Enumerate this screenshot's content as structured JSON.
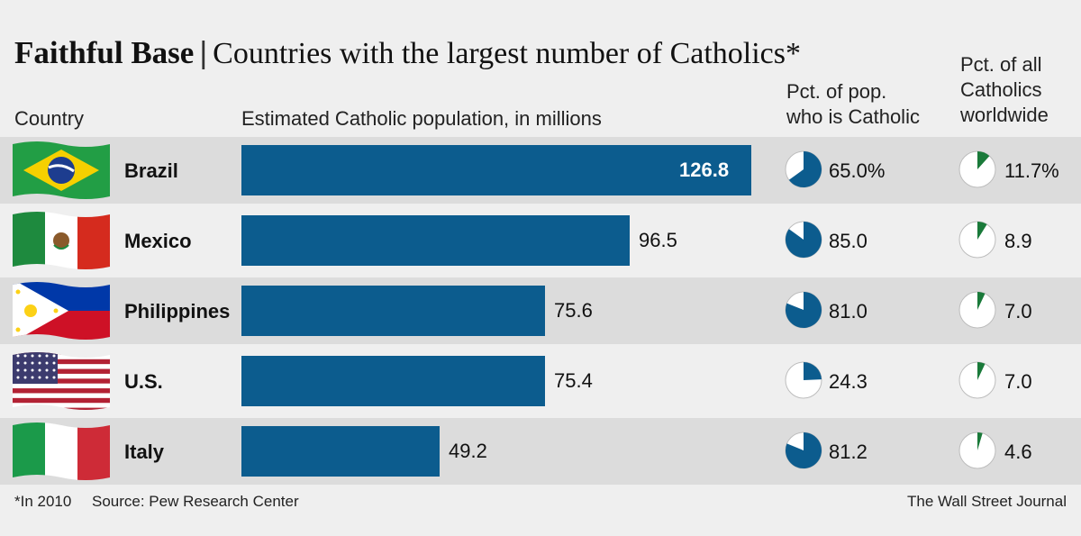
{
  "header": {
    "title_bold": "Faithful Base",
    "separator": "|",
    "title_sub": "Countries with the largest number of Catholics*"
  },
  "columns": {
    "country": "Country",
    "population": "Estimated Catholic population, in millions",
    "pct_pop_line1": "Pct. of pop.",
    "pct_pop_line2": "who is Catholic",
    "pct_world_line1": "Pct. of all",
    "pct_world_line2": "Catholics",
    "pct_world_line3": "worldwide"
  },
  "footer": {
    "note": "*In 2010",
    "source": "Source: Pew Research Center",
    "credit": "The Wall Street Journal"
  },
  "colors": {
    "bar": "#0c5c8e",
    "pie_fill": "#0c5c8e",
    "pie_world_fill": "#1a7a3a",
    "band": "#dcdcdc"
  },
  "chart_data": {
    "type": "bar",
    "title": "Countries with the largest number of Catholics*",
    "ylabel": "Estimated Catholic population, in millions",
    "categories": [
      "Brazil",
      "Mexico",
      "Philippines",
      "U.S.",
      "Italy"
    ],
    "values": [
      126.8,
      96.5,
      75.6,
      75.4,
      49.2
    ],
    "value_labels": [
      "126.8",
      "96.5",
      "75.6",
      "75.4",
      "49.2"
    ],
    "xlim": [
      0,
      126.8
    ],
    "pct_of_pop": [
      65.0,
      85.0,
      81.0,
      24.3,
      81.2
    ],
    "pct_of_pop_labels": [
      "65.0%",
      "85.0",
      "81.0",
      "24.3",
      "81.2"
    ],
    "pct_of_world": [
      11.7,
      8.9,
      7.0,
      7.0,
      4.6
    ],
    "pct_of_world_labels": [
      "11.7%",
      "8.9",
      "7.0",
      "7.0",
      "4.6"
    ],
    "flags": [
      "brazil-flag",
      "mexico-flag",
      "philippines-flag",
      "us-flag",
      "italy-flag"
    ]
  }
}
